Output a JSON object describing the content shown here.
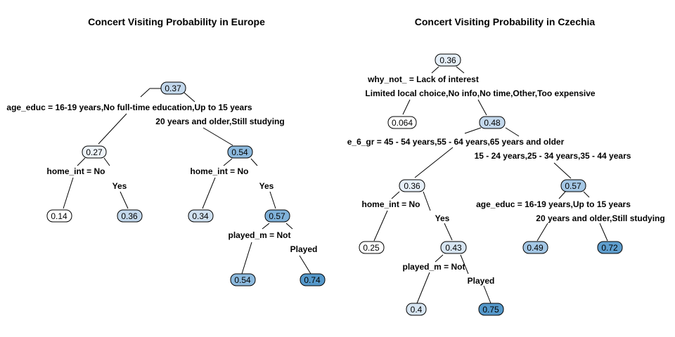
{
  "colors": {
    "level_0": "#ffffff",
    "level_1": "#d7e5f2",
    "level_2": "#a9c9e4",
    "level_3": "#6aa6d2",
    "level_4": "#5598ca"
  },
  "europe": {
    "title": "Concert Visiting Probability in Europe",
    "nodes": {
      "root": "0.37",
      "n_left": "0.27",
      "n_right": "0.54",
      "leaf_ll": "0.14",
      "leaf_lr": "0.36",
      "leaf_rl": "0.34",
      "n_rr": "0.57",
      "leaf_rrl": "0.54",
      "leaf_rrr": "0.74"
    },
    "labels": {
      "root_left": "age_educ = 16-19 years,No full-time education,Up to 15 years",
      "root_right": "20 years and older,Still studying",
      "left_left": "home_int = No",
      "left_right": "Yes",
      "right_left": "home_int = No",
      "right_right": "Yes",
      "rr_left": "played_m = Not",
      "rr_right": "Played"
    }
  },
  "czechia": {
    "title": "Concert Visiting Probability in Czechia",
    "nodes": {
      "root": "0.36",
      "leaf_l": "0.064",
      "n_r": "0.48",
      "n_rl": "0.36",
      "leaf_rll": "0.25",
      "n_rlr": "0.43",
      "leaf_rlrl": "0.4",
      "leaf_rlrr": "0.75",
      "n_rr": "0.57",
      "leaf_rrl": "0.49",
      "leaf_rrr": "0.72"
    },
    "labels": {
      "root_left": "why_not_ = Lack of interest",
      "root_right": "Limited local choice,No info,No time,Other,Too expensive",
      "r_left": "e_6_gr = 45 - 54 years,55 - 64 years,65 years and older",
      "r_right": "15 - 24 years,25 - 34 years,35 - 44 years",
      "rl_left": "home_int = No",
      "rl_right": "Yes",
      "rlr_left": "played_m = Not",
      "rlr_right": "Played",
      "rr_left": "age_educ = 16-19 years,Up to 15 years",
      "rr_right": "20 years and older,Still studying"
    }
  }
}
